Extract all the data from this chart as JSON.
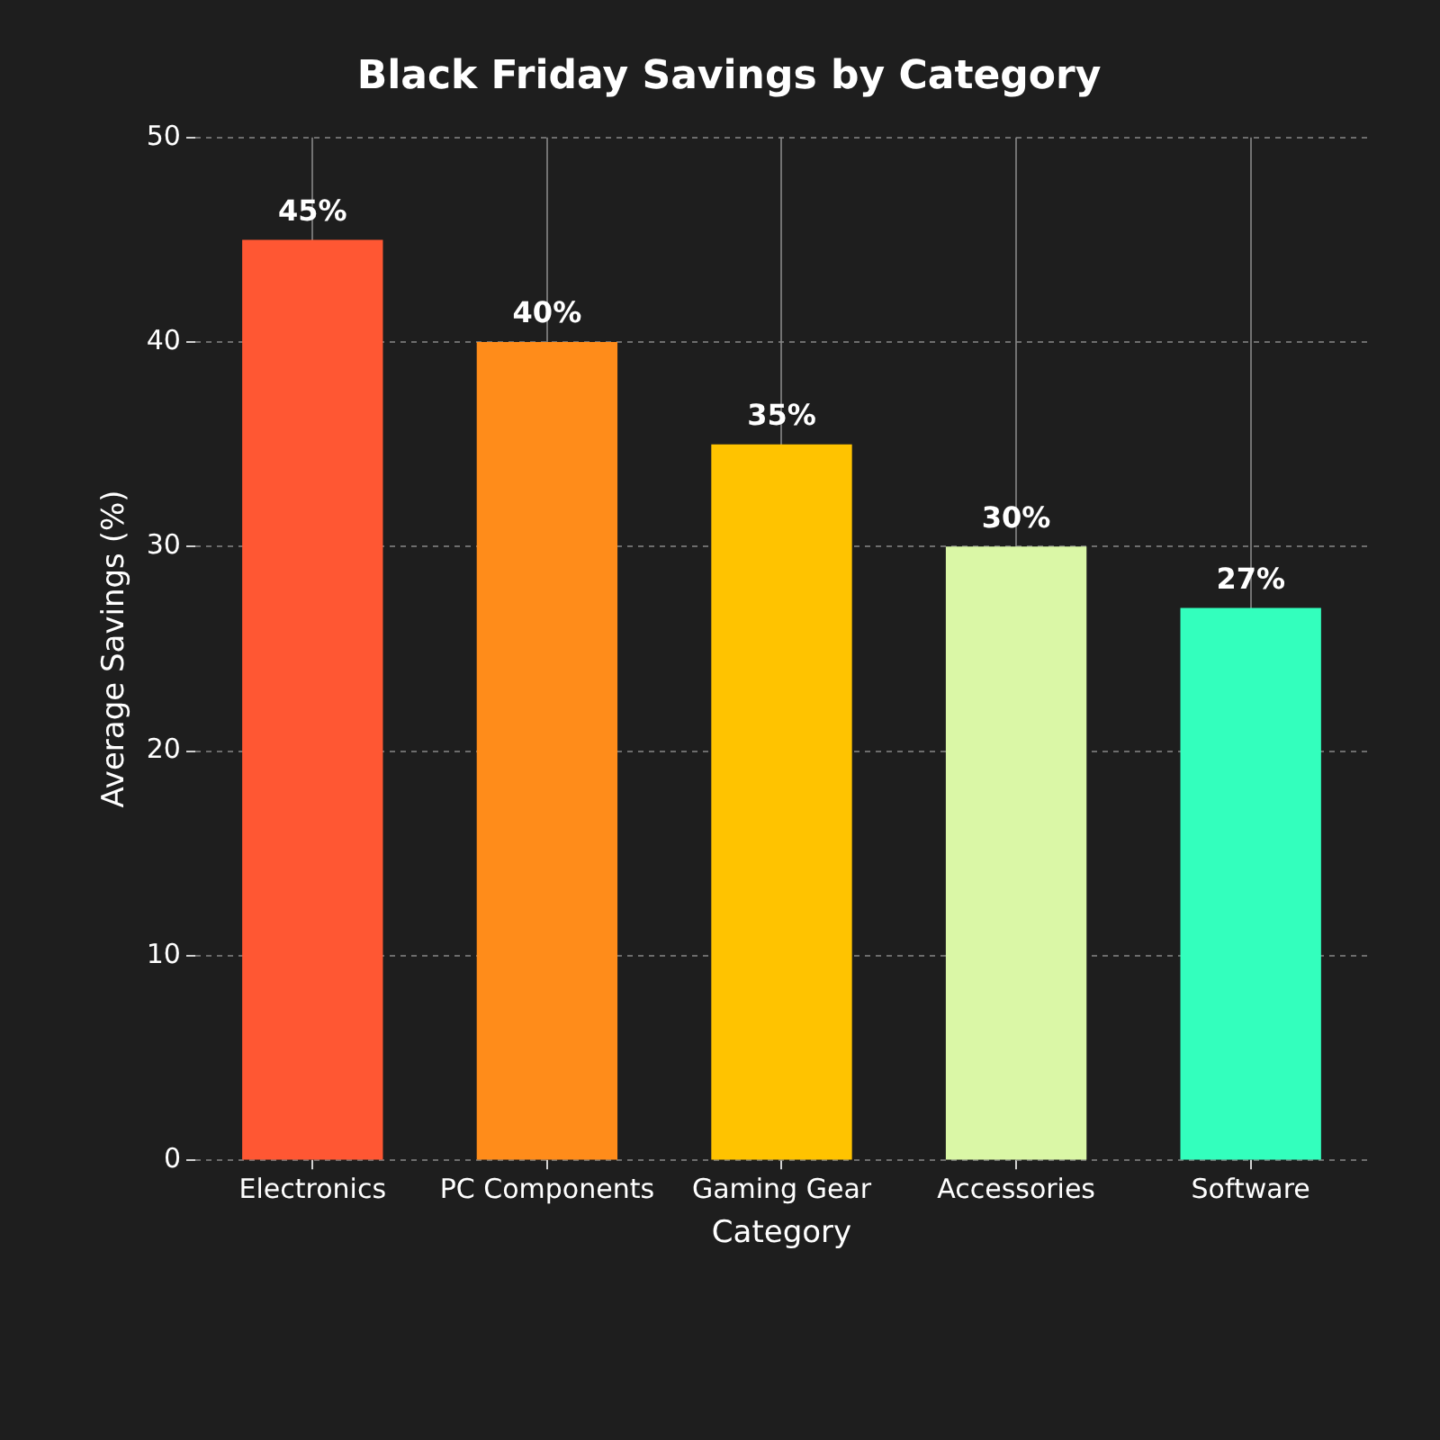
{
  "chart_data": {
    "type": "bar",
    "title": "Black Friday Savings by Category",
    "xlabel": "Category",
    "ylabel": "Average Savings (%)",
    "categories": [
      "Electronics",
      "PC Components",
      "Gaming Gear",
      "Accessories",
      "Software"
    ],
    "values": [
      45,
      40,
      35,
      30,
      27
    ],
    "colors": [
      "#ff5733",
      "#ff8c1a",
      "#ffc300",
      "#daf7a6",
      "#33ffbd"
    ],
    "value_labels": [
      "45%",
      "40%",
      "35%",
      "30%",
      "27%"
    ],
    "ylim": [
      0,
      50
    ],
    "yticks": [
      0,
      10,
      20,
      30,
      40,
      50
    ],
    "grid": true,
    "legend": false
  }
}
